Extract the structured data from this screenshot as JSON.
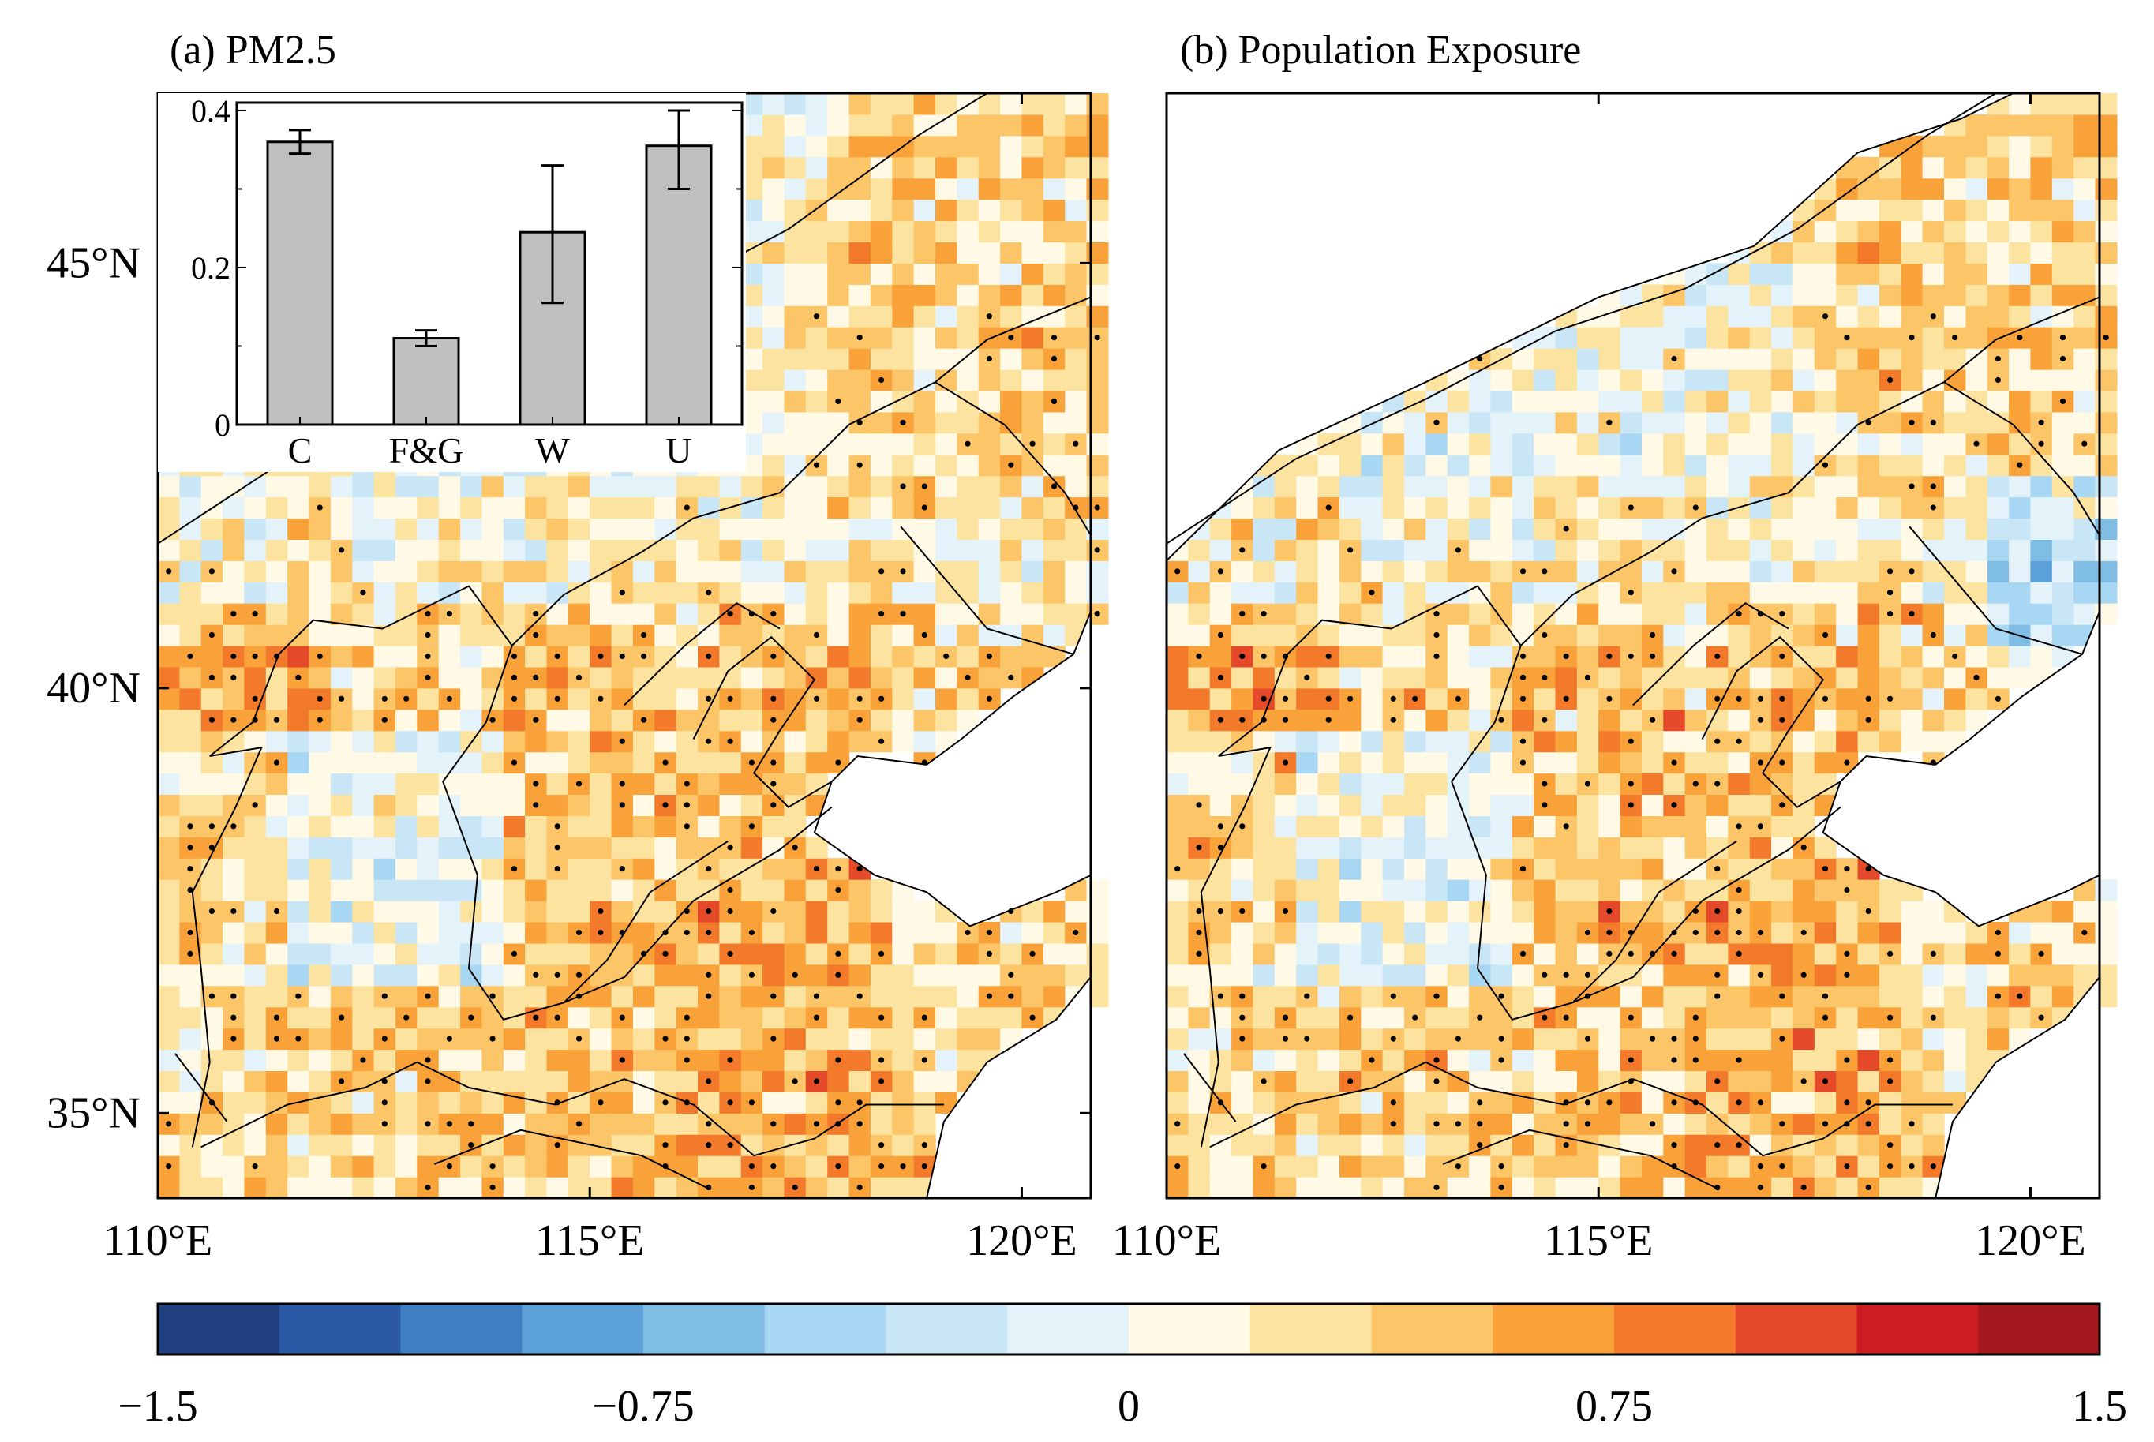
{
  "chart_data": [
    {
      "type": "heatmap",
      "panel": "a",
      "title": "(a) PM2.5",
      "x_ticks": [
        {
          "label": "110°E",
          "value": 110
        },
        {
          "label": "115°E",
          "value": 115
        },
        {
          "label": "120°E",
          "value": 120
        }
      ],
      "y_ticks": [
        {
          "label": "45°N",
          "value": 45
        },
        {
          "label": "40°N",
          "value": 40
        },
        {
          "label": "35°N",
          "value": 35
        }
      ],
      "xlim": [
        110,
        120.8
      ],
      "ylim": [
        34,
        47
      ],
      "grid_resolution_deg": 0.25,
      "dots_meaning": "statistically significant grid cells",
      "inset": {
        "type": "bar",
        "categories": [
          "C",
          "F&G",
          "W",
          "U"
        ],
        "values": [
          0.36,
          0.11,
          0.245,
          0.355
        ],
        "error_low": [
          0.345,
          0.1,
          0.155,
          0.3
        ],
        "error_high": [
          0.375,
          0.12,
          0.33,
          0.4
        ],
        "y_ticks": [
          "0",
          "0.2",
          "0.4"
        ],
        "ylim": [
          0,
          0.41
        ],
        "bar_color": "#c0c0c0"
      }
    },
    {
      "type": "heatmap",
      "panel": "b",
      "title": "(b) Population Exposure",
      "x_ticks": [
        {
          "label": "110°E",
          "value": 110
        },
        {
          "label": "115°E",
          "value": 115
        },
        {
          "label": "120°E",
          "value": 120
        }
      ],
      "xlim": [
        110,
        120.8
      ],
      "ylim": [
        34,
        47
      ],
      "grid_resolution_deg": 0.25,
      "dots_meaning": "statistically significant grid cells"
    }
  ],
  "colorbar": {
    "min": -1.5,
    "max": 1.5,
    "tick_labels": [
      "−1.5",
      "−0.75",
      "0",
      "0.75",
      "1.5"
    ],
    "tick_values": [
      -1.5,
      -0.75,
      0,
      0.75,
      1.5
    ],
    "colors": [
      "#21407f",
      "#2c59a5",
      "#3e7fc3",
      "#5ba0d8",
      "#7fbde5",
      "#a8d7f3",
      "#c8e6f5",
      "#e4f2f9",
      "#fff9e5",
      "#fde3a0",
      "#fbc568",
      "#f9a23a",
      "#f27a2a",
      "#e44a29",
      "#cc1e22",
      "#a3181d"
    ]
  },
  "map": {
    "land_color": "#ffffff",
    "border_color": "#000000",
    "dot_color": "#000000"
  }
}
